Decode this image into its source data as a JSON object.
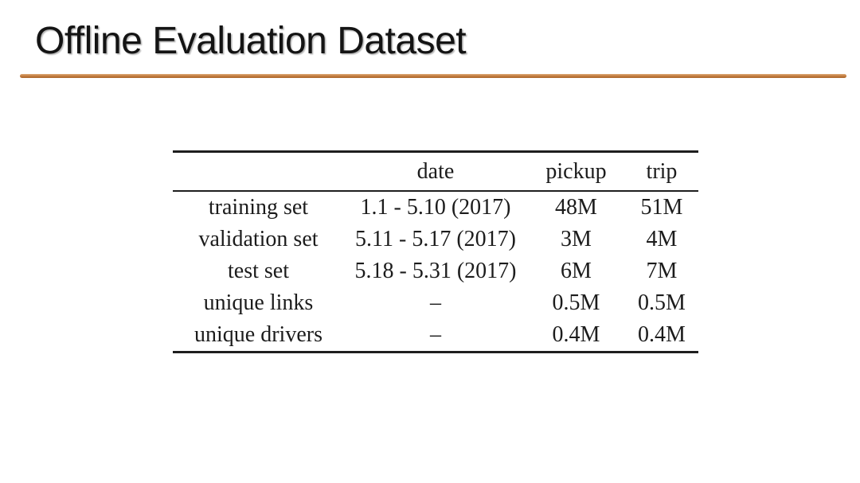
{
  "slide": {
    "title": "Offline Evaluation Dataset",
    "accent_color": "#c17a3c"
  },
  "chart_data": {
    "type": "table",
    "title": "Offline Evaluation Dataset",
    "columns": [
      "",
      "date",
      "pickup",
      "trip"
    ],
    "rows": [
      [
        "training set",
        "1.1 - 5.10 (2017)",
        "48M",
        "51M"
      ],
      [
        "validation set",
        "5.11 - 5.17 (2017)",
        "3M",
        "4M"
      ],
      [
        "test set",
        "5.18 - 5.31 (2017)",
        "6M",
        "7M"
      ],
      [
        "unique links",
        "–",
        "0.5M",
        "0.5M"
      ],
      [
        "unique drivers",
        "–",
        "0.4M",
        "0.4M"
      ]
    ]
  }
}
